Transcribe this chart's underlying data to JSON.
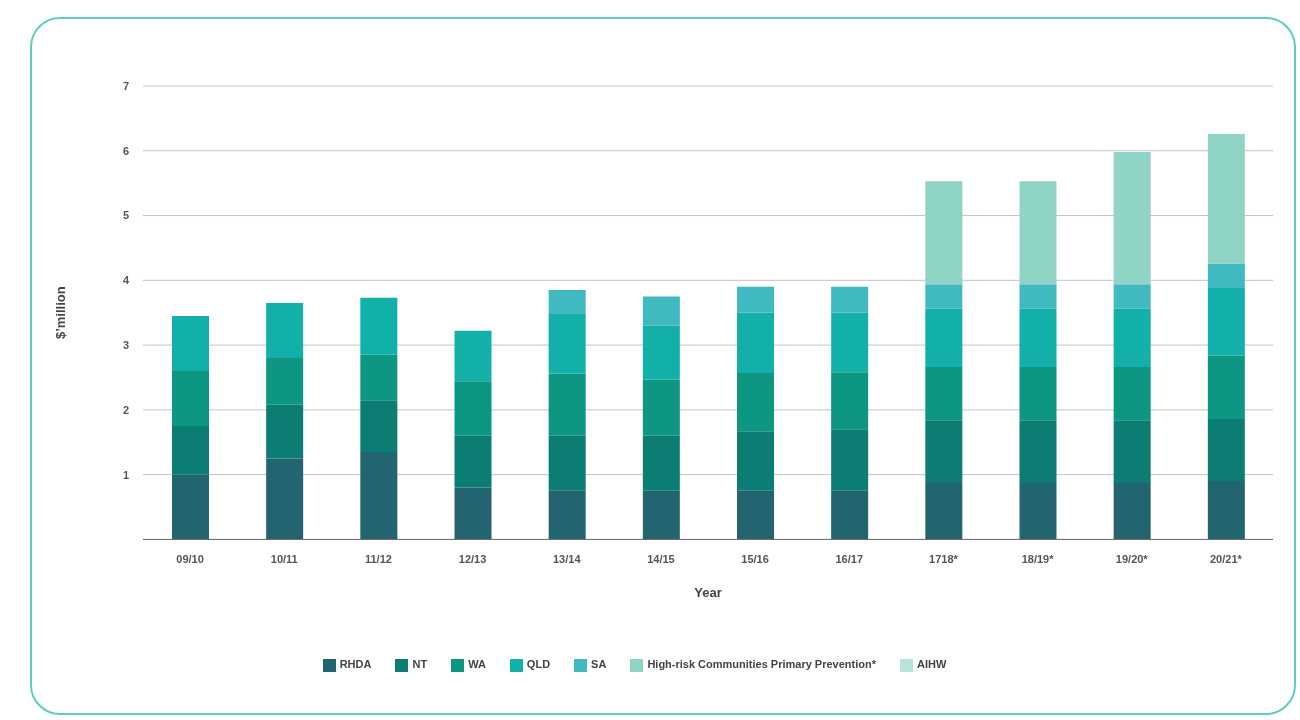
{
  "chart_data": {
    "type": "bar",
    "stacked": true,
    "xlabel": "Year",
    "ylabel": "$’million",
    "categories": [
      "09/10",
      "10/11",
      "11/12",
      "12/13",
      "13/14",
      "14/15",
      "15/16",
      "16/17",
      "1718*",
      "18/19*",
      "19/20*",
      "20/21*"
    ],
    "series": [
      {
        "name": "RHDA",
        "color": "#22646f",
        "values": [
          1.0,
          1.25,
          1.35,
          0.8,
          0.76,
          0.75,
          0.75,
          0.75,
          0.87,
          0.87,
          0.87,
          0.9
        ]
      },
      {
        "name": "NT",
        "color": "#0b7d73",
        "values": [
          0.75,
          0.83,
          0.8,
          0.8,
          0.84,
          0.85,
          0.92,
          0.95,
          0.97,
          0.97,
          0.97,
          0.96
        ]
      },
      {
        "name": "WA",
        "color": "#0d9682",
        "values": [
          0.85,
          0.72,
          0.7,
          0.84,
          0.96,
          0.87,
          0.9,
          0.88,
          0.82,
          0.82,
          0.82,
          0.98
        ]
      },
      {
        "name": "QLD",
        "color": "#12b0a8",
        "values": [
          0.85,
          0.85,
          0.88,
          0.78,
          0.92,
          0.83,
          0.93,
          0.92,
          0.9,
          0.9,
          0.9,
          1.04
        ]
      },
      {
        "name": "SA",
        "color": "#41b9c1",
        "values": [
          null,
          null,
          null,
          null,
          0.37,
          0.45,
          0.4,
          0.4,
          0.38,
          0.38,
          0.38,
          0.38
        ]
      },
      {
        "name": "High-risk Communities Primary Prevention*",
        "color": "#8fd4c4",
        "values": [
          null,
          null,
          null,
          null,
          null,
          null,
          null,
          null,
          1.59,
          1.59,
          2.04,
          2.0
        ]
      },
      {
        "name": "AIHW",
        "color": "#b6e4d9",
        "values": [
          null,
          null,
          null,
          null,
          null,
          null,
          null,
          null,
          null,
          null,
          null,
          null
        ]
      }
    ],
    "ylim": [
      0,
      7
    ],
    "yticks": [
      1,
      2,
      3,
      4,
      5,
      6,
      7
    ],
    "grid": "y",
    "legend": "bottom"
  }
}
